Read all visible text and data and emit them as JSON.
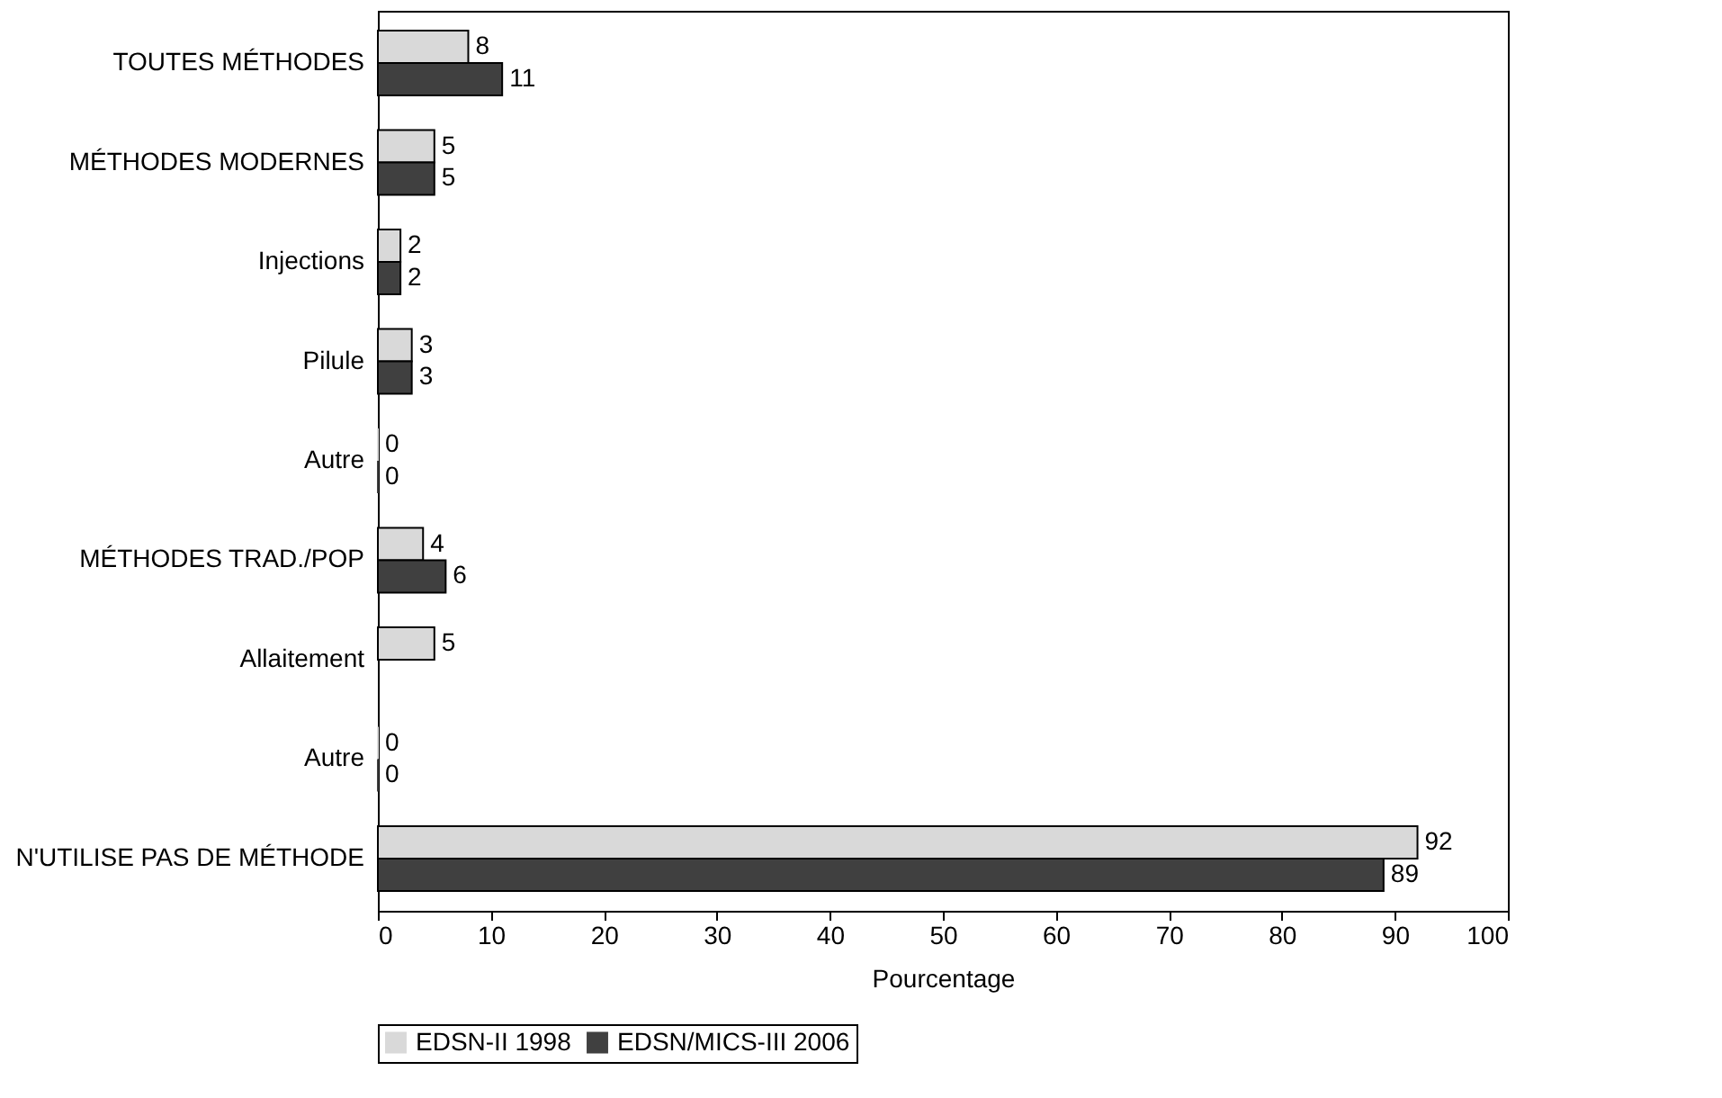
{
  "chart_data": {
    "type": "bar",
    "orientation": "horizontal",
    "categories": [
      "TOUTES MÉTHODES",
      "MÉTHODES MODERNES",
      "Injections",
      "Pilule",
      "Autre",
      "MÉTHODES TRAD./POP",
      "Allaitement",
      "Autre",
      "N'UTILISE PAS DE MÉTHODE"
    ],
    "series": [
      {
        "name": "EDSN-II 1998",
        "color": "#d9d9d9",
        "values": [
          8,
          5,
          2,
          3,
          0,
          4,
          5,
          0,
          92
        ]
      },
      {
        "name": "EDSN/MICS-III 2006",
        "color": "#404040",
        "values": [
          11,
          5,
          2,
          3,
          0,
          6,
          null,
          0,
          89
        ]
      }
    ],
    "xlabel": "Pourcentage",
    "xlim": [
      0,
      100
    ],
    "xticks": [
      0,
      10,
      20,
      30,
      40,
      50,
      60,
      70,
      80,
      90,
      100
    ],
    "data_labels": true,
    "legend": "bottom",
    "grid": false
  }
}
